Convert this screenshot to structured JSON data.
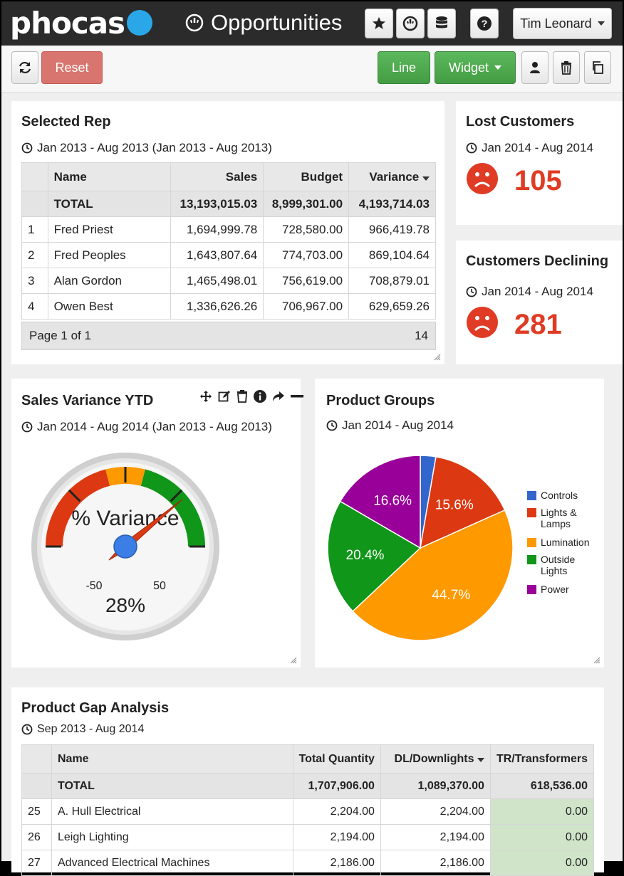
{
  "header": {
    "logo_text": "phocas",
    "page_title": "Opportunities",
    "user_name": "Tim Leonard"
  },
  "toolbar": {
    "reset_label": "Reset",
    "line_label": "Line",
    "widget_label": "Widget"
  },
  "selected_rep": {
    "title": "Selected Rep",
    "date_range": "Jan 2013 - Aug 2013 (Jan 2013 - Aug 2013)",
    "columns": [
      "Name",
      "Sales",
      "Budget",
      "Variance"
    ],
    "total": {
      "label": "TOTAL",
      "sales": "13,193,015.03",
      "budget": "8,999,301.00",
      "variance": "4,193,714.03"
    },
    "rows": [
      {
        "n": "1",
        "name": "Fred Priest",
        "sales": "1,694,999.78",
        "budget": "728,580.00",
        "variance": "966,419.78"
      },
      {
        "n": "2",
        "name": "Fred Peoples",
        "sales": "1,643,807.64",
        "budget": "774,703.00",
        "variance": "869,104.64"
      },
      {
        "n": "3",
        "name": "Alan Gordon",
        "sales": "1,465,498.01",
        "budget": "756,619.00",
        "variance": "708,879.01"
      },
      {
        "n": "4",
        "name": "Owen Best",
        "sales": "1,336,626.26",
        "budget": "706,967.00",
        "variance": "629,659.26"
      }
    ],
    "footer_page": "Page 1 of 1",
    "footer_count": "14"
  },
  "lost_customers": {
    "title": "Lost Customers",
    "date_range": "Jan 2014 - Aug 2014",
    "value": "105"
  },
  "customers_declining": {
    "title": "Customers Declining",
    "date_range": "Jan 2014 - Aug 2014",
    "value": "281"
  },
  "sales_variance": {
    "title": "Sales Variance YTD",
    "date_range": "Jan 2014 - Aug 2014 (Jan 2013 - Aug 2013)",
    "gauge_label": "% Variance",
    "gauge_min": "-50",
    "gauge_max": "50",
    "gauge_value_text": "28%",
    "gauge_value": 28
  },
  "product_groups": {
    "title": "Product Groups",
    "date_range": "Jan 2014 - Aug 2014"
  },
  "chart_data": {
    "type": "pie",
    "title": "Product Groups",
    "categories": [
      "Controls",
      "Lights & Lamps",
      "Lumination",
      "Outside Lights",
      "Power"
    ],
    "values": [
      2.7,
      15.6,
      44.7,
      20.4,
      16.6
    ],
    "labels": [
      "",
      "15.6%",
      "44.7%",
      "20.4%",
      "16.6%"
    ],
    "colors": [
      "#3366cc",
      "#dc3912",
      "#ff9900",
      "#109618",
      "#990099"
    ],
    "legend_position": "right"
  },
  "gap_analysis": {
    "title": "Product Gap Analysis",
    "date_range": "Sep 2013 - Aug 2014",
    "columns": [
      "Name",
      "Total Quantity",
      "DL/Downlights",
      "TR/Transformers"
    ],
    "total": {
      "label": "TOTAL",
      "qty": "1,707,906.00",
      "dl": "1,089,370.00",
      "tr": "618,536.00"
    },
    "rows": [
      {
        "n": "25",
        "name": "A. Hull Electrical",
        "qty": "2,204.00",
        "dl": "2,204.00",
        "tr": "0.00"
      },
      {
        "n": "26",
        "name": "Leigh Lighting",
        "qty": "2,194.00",
        "dl": "2,194.00",
        "tr": "0.00"
      },
      {
        "n": "27",
        "name": "Advanced Electrical Machines",
        "qty": "2,186.00",
        "dl": "2,186.00",
        "tr": "0.00"
      }
    ]
  }
}
